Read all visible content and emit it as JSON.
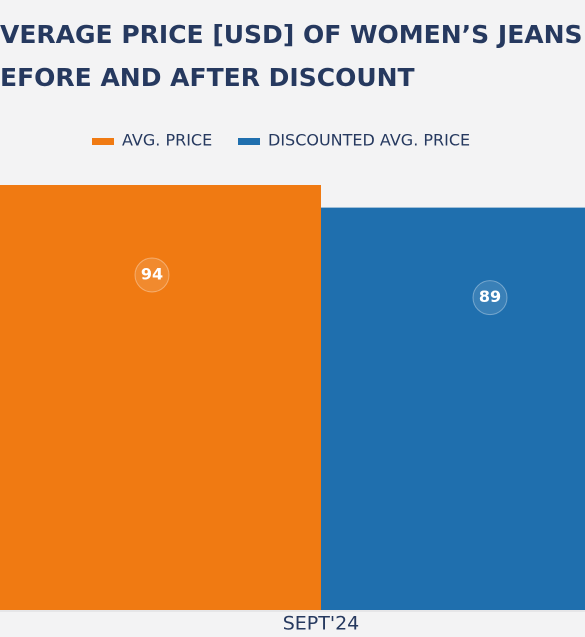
{
  "chart_data": {
    "type": "bar",
    "title": [
      "VERAGE PRICE [USD] OF WOMEN’S JEANS ST",
      "EFORE AND AFTER DISCOUNT"
    ],
    "categories": [
      "SEPT'24"
    ],
    "series": [
      {
        "name": "AVG. PRICE",
        "color": "#f07a12",
        "values": [
          94
        ]
      },
      {
        "name": "DISCOUNTED AVG. PRICE",
        "color": "#1f6fae",
        "values": [
          89
        ]
      }
    ]
  }
}
